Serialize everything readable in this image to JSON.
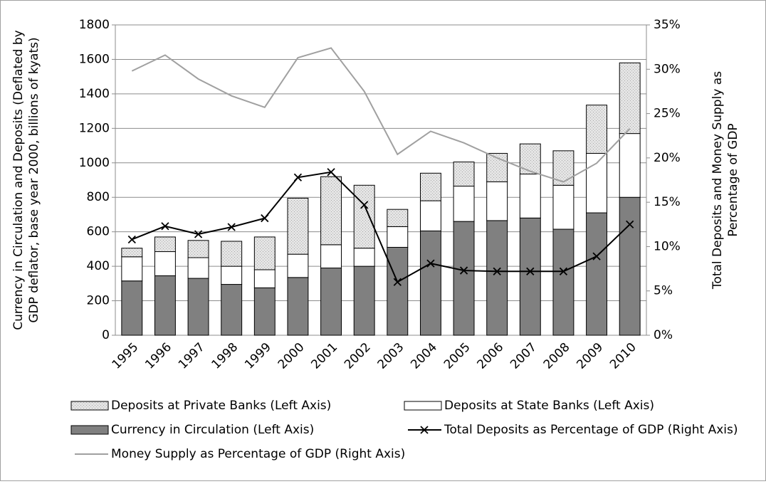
{
  "chart_data": {
    "type": "bar-line",
    "y_label": [
      "Currency in Circulation and Deposits (Deflated by",
      "GDP deflator, base year 2000, billions of kyats)"
    ],
    "y2_label": [
      "Total Deposits and Money Supply as",
      "Percentage of GDP"
    ],
    "categories": [
      "1995",
      "1996",
      "1997",
      "1998",
      "1999",
      "2000",
      "2001",
      "2002",
      "2003",
      "2004",
      "2005",
      "2006",
      "2007",
      "2008",
      "2009",
      "2010"
    ],
    "series": [
      {
        "name": "Currency in Circulation (Left Axis)",
        "type": "bar",
        "color": "#808080",
        "values": [
          315,
          345,
          330,
          295,
          275,
          335,
          390,
          400,
          510,
          605,
          660,
          665,
          680,
          615,
          710,
          800
        ]
      },
      {
        "name": "Deposits at State Banks (Left Axis)",
        "type": "bar",
        "color": "#ffffff",
        "values": [
          140,
          140,
          120,
          105,
          105,
          135,
          135,
          105,
          120,
          175,
          205,
          225,
          255,
          255,
          345,
          370
        ]
      },
      {
        "name": "Deposits at Private Banks (Left Axis)",
        "type": "bar",
        "color": "#d9d9d9",
        "values": [
          50,
          85,
          100,
          145,
          190,
          325,
          395,
          365,
          100,
          160,
          140,
          165,
          175,
          200,
          280,
          410
        ]
      },
      {
        "name": "Total Deposits as Percentage of GDP (Right Axis)",
        "type": "line",
        "axis": "y2",
        "color": "#000000",
        "marker": "x",
        "values": [
          10.8,
          12.3,
          11.4,
          12.2,
          13.2,
          17.8,
          18.4,
          14.7,
          6.0,
          8.1,
          7.3,
          7.2,
          7.2,
          7.2,
          8.9,
          12.5
        ]
      },
      {
        "name": "Money Supply as Percentage of GDP (Right Axis)",
        "type": "line",
        "axis": "y2",
        "color": "#a0a0a0",
        "values": [
          29.8,
          31.6,
          28.9,
          27.0,
          25.7,
          31.3,
          32.4,
          27.5,
          20.4,
          23.0,
          21.7,
          20.0,
          18.5,
          17.3,
          19.4,
          23.3
        ]
      }
    ],
    "legend_order": [
      2,
      1,
      0,
      3,
      4
    ],
    "ylim": [
      0,
      1800
    ],
    "yticks": [
      0,
      200,
      400,
      600,
      800,
      1000,
      1200,
      1400,
      1600,
      1800
    ],
    "y2lim": [
      0,
      35
    ],
    "y2ticks": [
      {
        "value": 0,
        "label": "0%"
      },
      {
        "value": 5,
        "label": "5%"
      },
      {
        "value": 10,
        "label": "10%"
      },
      {
        "value": 15,
        "label": "15%"
      },
      {
        "value": 20,
        "label": "20%"
      },
      {
        "value": 25,
        "label": "25%"
      },
      {
        "value": 30,
        "label": "30%"
      },
      {
        "value": 35,
        "label": "35%"
      }
    ],
    "grid": true
  }
}
